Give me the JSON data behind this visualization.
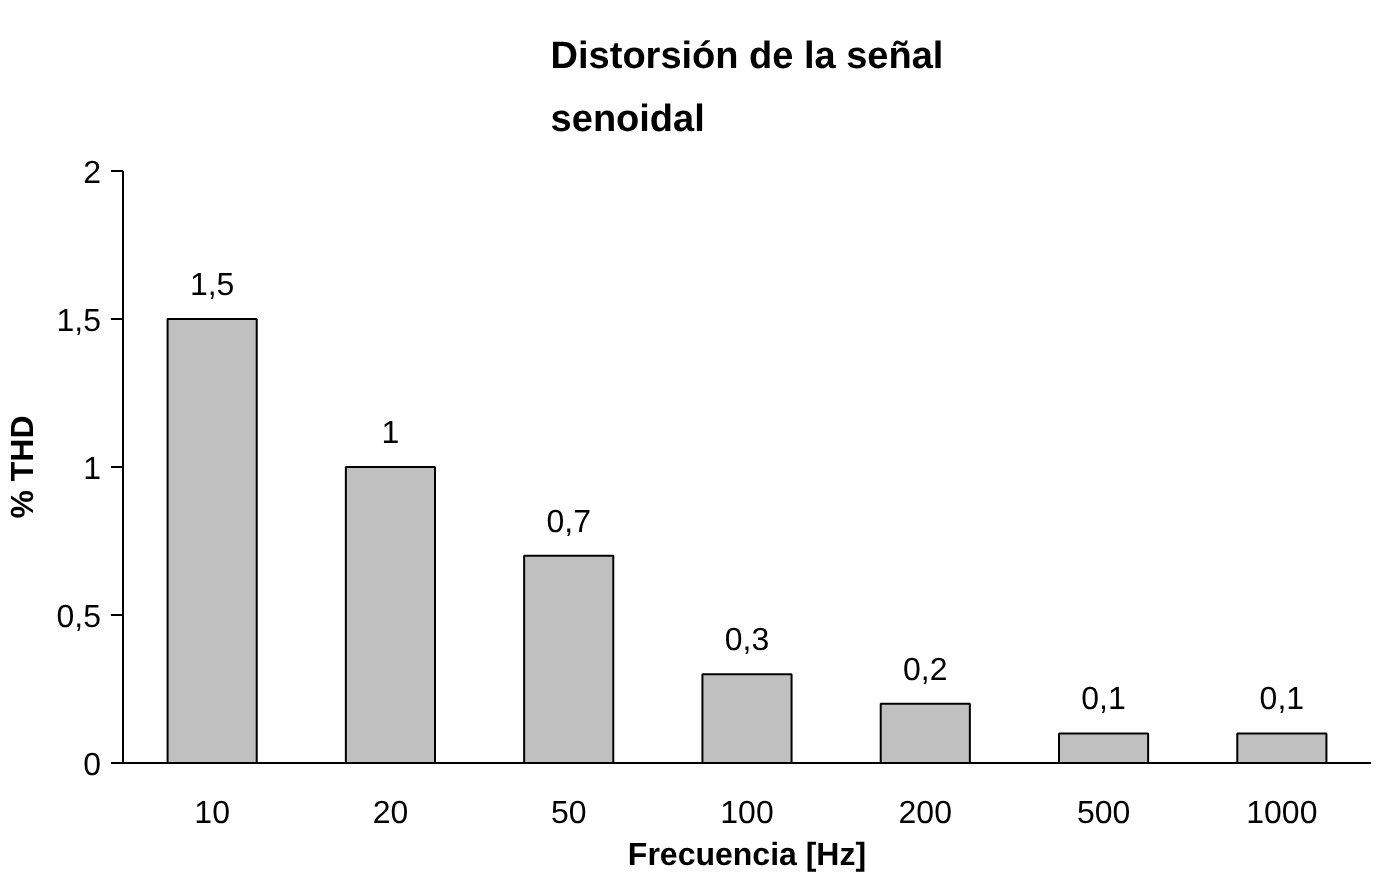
{
  "chart_data": {
    "type": "bar",
    "title": "Distorsión de la señal\nsenoidal",
    "xlabel": "Frecuencia [Hz]",
    "ylabel": "% THD",
    "categories": [
      "10",
      "20",
      "50",
      "100",
      "200",
      "500",
      "1000"
    ],
    "values": [
      1.5,
      1,
      0.7,
      0.3,
      0.2,
      0.1,
      0.1
    ],
    "value_labels": [
      "1,5",
      "1",
      "0,7",
      "0,3",
      "0,2",
      "0,1",
      "0,1"
    ],
    "color": "#c0c0c0",
    "ylim": [
      0,
      2
    ],
    "yticks": [
      0,
      {
        "value": 0.5,
        "label": "0,5"
      },
      1,
      {
        "value": 1.5,
        "label": "1,5"
      },
      2
    ],
    "grid": false
  }
}
